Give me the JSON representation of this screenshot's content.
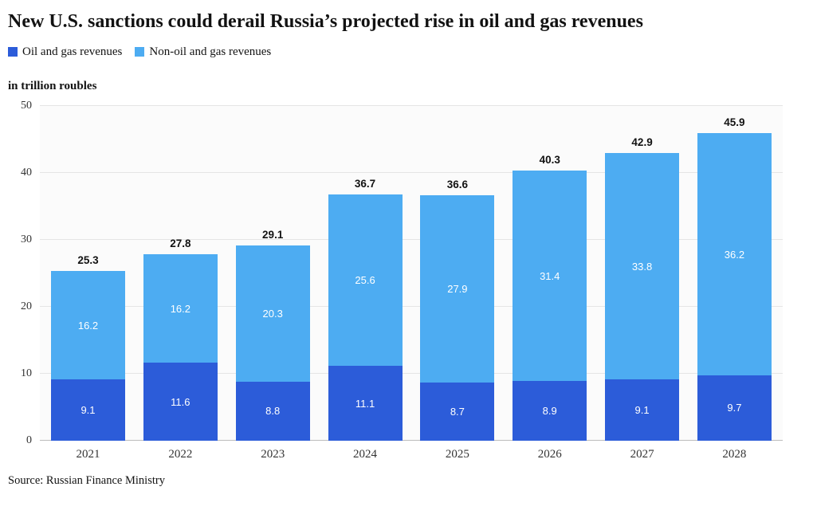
{
  "header": {
    "title": "New U.S. sanctions could derail Russia’s projected rise in oil and gas revenues"
  },
  "legend": [
    {
      "label": "Oil and gas revenues",
      "color": "#2c5cd9"
    },
    {
      "label": "Non-oil and gas revenues",
      "color": "#4dacf2"
    }
  ],
  "units_label": "in trillion roubles",
  "source": "Source: Russian Finance Ministry",
  "chart_data": {
    "type": "bar",
    "stacked": true,
    "title": "New U.S. sanctions could derail Russia’s projected rise in oil and gas revenues",
    "ylabel": "in trillion roubles",
    "xlabel": "",
    "categories": [
      "2021",
      "2022",
      "2023",
      "2024",
      "2025",
      "2026",
      "2027",
      "2028"
    ],
    "series": [
      {
        "name": "Oil and gas revenues",
        "color": "#2c5cd9",
        "values": [
          9.1,
          11.6,
          8.8,
          11.1,
          8.7,
          8.9,
          9.1,
          9.7
        ]
      },
      {
        "name": "Non-oil and gas revenues",
        "color": "#4dacf2",
        "values": [
          16.2,
          16.2,
          20.3,
          25.6,
          27.9,
          31.4,
          33.8,
          36.2
        ]
      }
    ],
    "totals": [
      25.3,
      27.8,
      29.1,
      36.7,
      36.6,
      40.3,
      42.9,
      45.9
    ],
    "ylim": [
      0,
      50
    ],
    "yticks": [
      0,
      10,
      20,
      30,
      40,
      50
    ],
    "grid": true,
    "legend_position": "top"
  }
}
